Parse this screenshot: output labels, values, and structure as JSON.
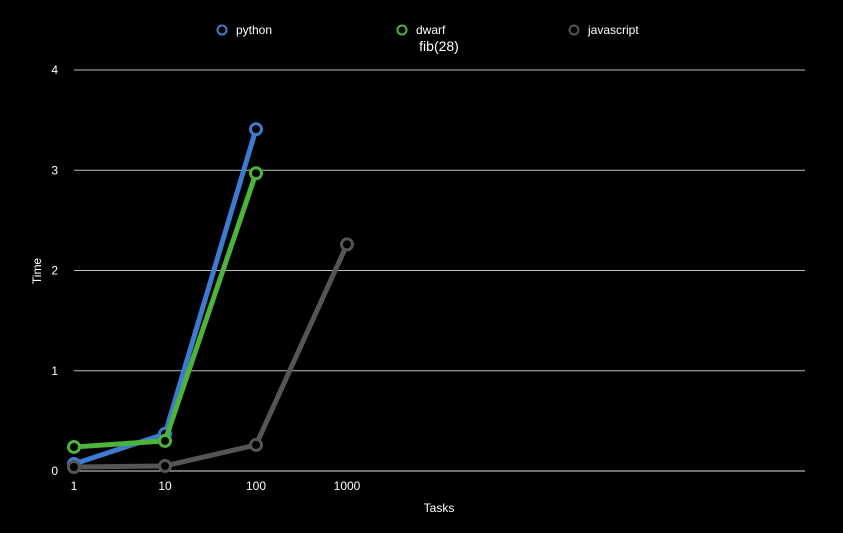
{
  "chart_data": {
    "type": "line",
    "title": "fib(28)",
    "xlabel": "Tasks",
    "ylabel": "Time",
    "x_scale": "log",
    "x": [
      1,
      10,
      100,
      1000
    ],
    "x_tick_labels": [
      "1",
      "10",
      "100",
      "1000"
    ],
    "ylim": [
      0,
      4
    ],
    "y_ticks": [
      0,
      1,
      2,
      3,
      4
    ],
    "y_tick_labels": [
      "0",
      "1",
      "2",
      "3",
      "4"
    ],
    "grid": true,
    "legend_position": "top",
    "series": [
      {
        "name": "python",
        "color": "#3d7bd1",
        "x": [
          1,
          10,
          100
        ],
        "values": [
          0.07,
          0.37,
          3.41
        ]
      },
      {
        "name": "dwarf",
        "color": "#4cb33b",
        "x": [
          1,
          10,
          100
        ],
        "values": [
          0.24,
          0.3,
          2.97
        ]
      },
      {
        "name": "javascript",
        "color": "#555555",
        "x": [
          1,
          10,
          100,
          1000
        ],
        "values": [
          0.04,
          0.05,
          0.26,
          2.26
        ]
      }
    ]
  }
}
